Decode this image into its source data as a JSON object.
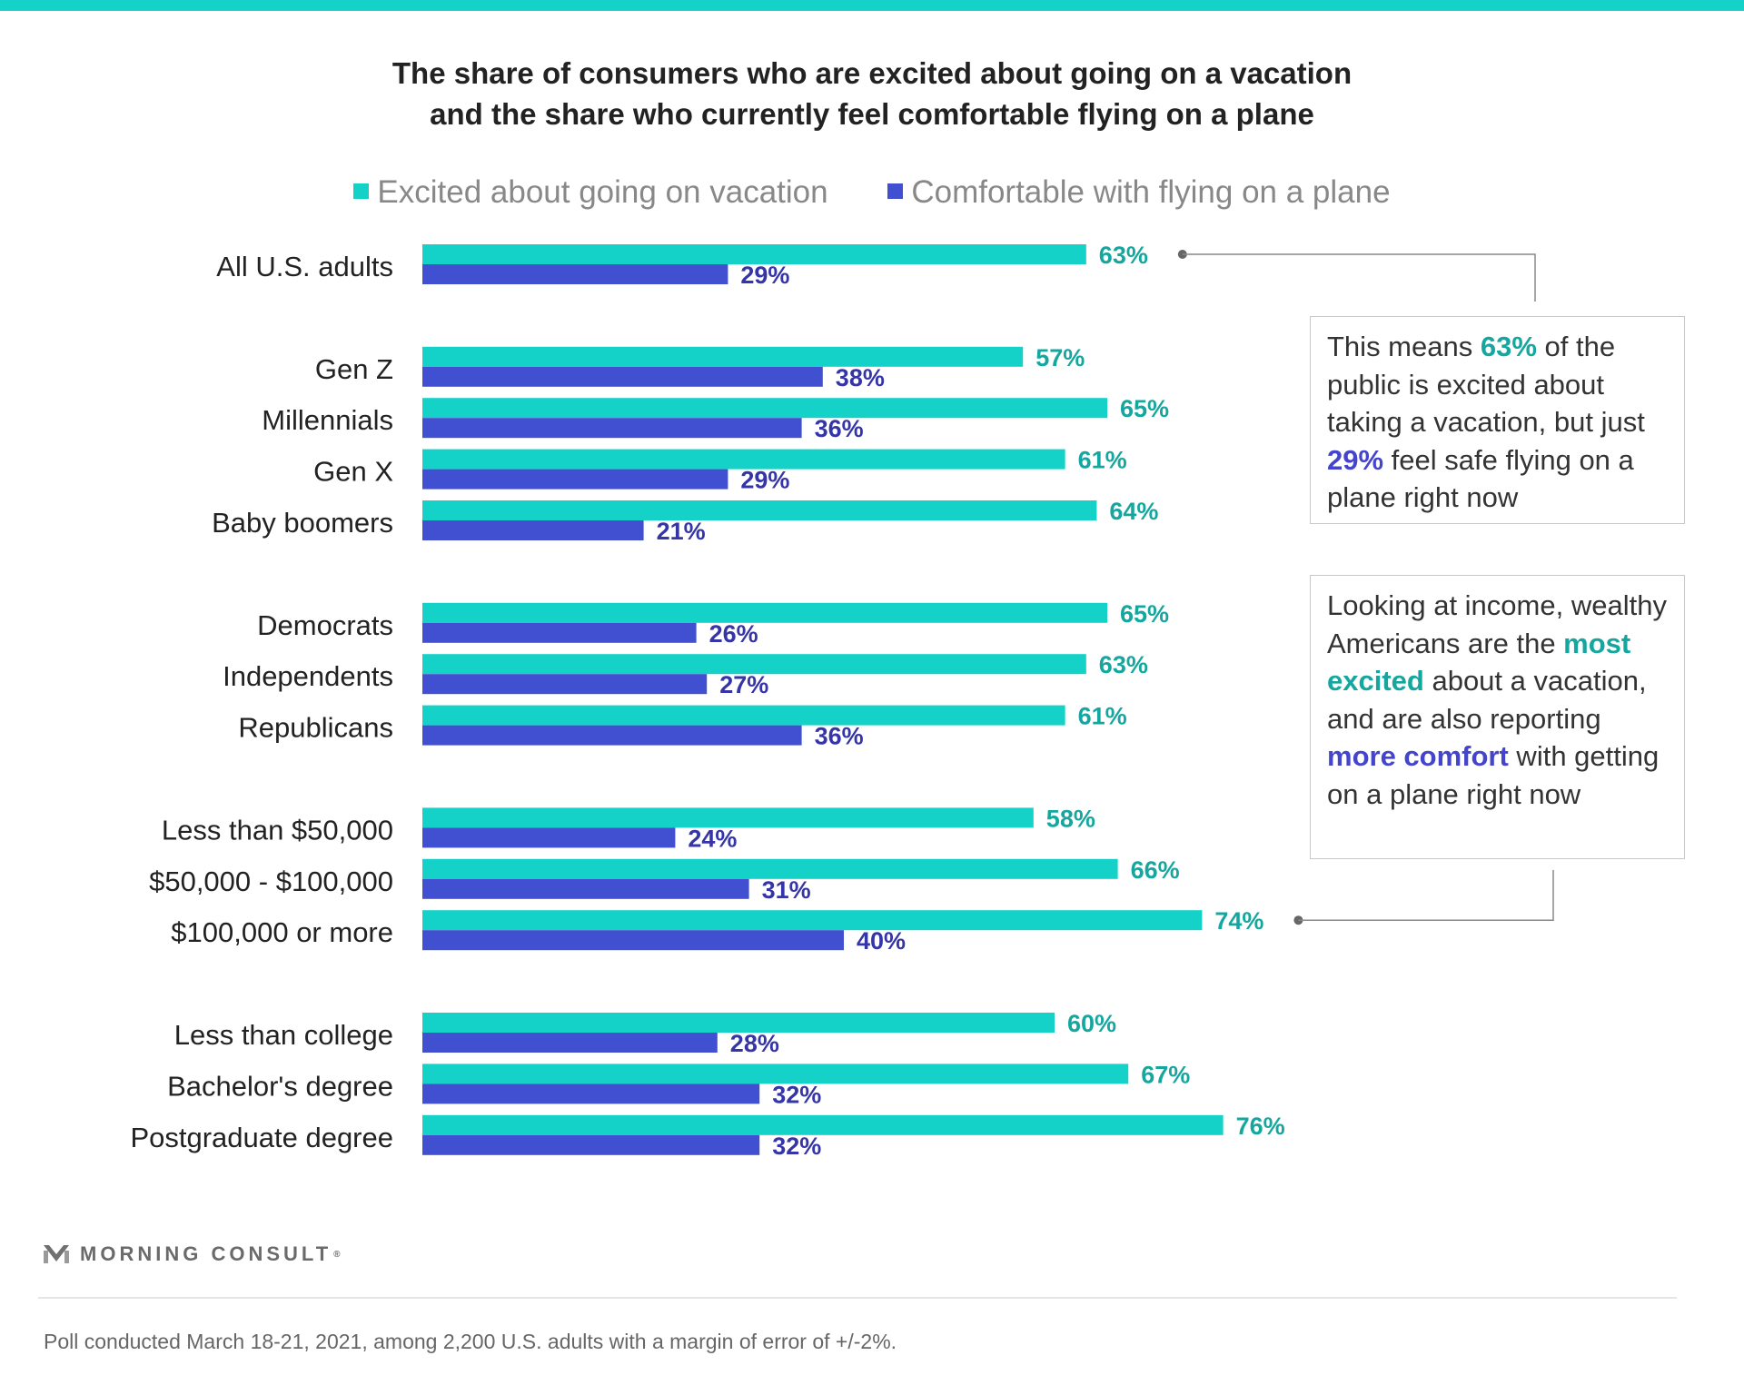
{
  "colors": {
    "excited": "#14d2c8",
    "comfortable": "#4050d0",
    "excited_label": "#15a79f",
    "comfortable_label": "#3535a8"
  },
  "chart_data": {
    "type": "bar",
    "orientation": "horizontal",
    "title": "The share of consumers who are excited about going on a vacation and the share who currently feel comfortable flying on a plane",
    "title_lines": [
      "The share of consumers who are excited about going on a vacation",
      "and the share who currently feel comfortable flying on a plane"
    ],
    "value_format": "percent",
    "xlim": [
      0,
      100
    ],
    "grid": false,
    "legend_position": "top",
    "groups": [
      [
        "All U.S. adults"
      ],
      [
        "Gen Z",
        "Millennials",
        "Gen X",
        "Baby boomers"
      ],
      [
        "Democrats",
        "Independents",
        "Republicans"
      ],
      [
        "Less than $50,000",
        "$50,000 - $100,000",
        "$100,000 or more"
      ],
      [
        "Less than college",
        "Bachelor's degree",
        "Postgraduate degree"
      ]
    ],
    "categories": [
      "All U.S. adults",
      "Gen Z",
      "Millennials",
      "Gen X",
      "Baby boomers",
      "Democrats",
      "Independents",
      "Republicans",
      "Less than $50,000",
      "$50,000 - $100,000",
      "$100,000 or more",
      "Less than college",
      "Bachelor's degree",
      "Postgraduate degree"
    ],
    "series": [
      {
        "name": "Excited about going on vacation",
        "values": [
          63,
          57,
          65,
          61,
          64,
          65,
          63,
          61,
          58,
          66,
          74,
          60,
          67,
          76
        ]
      },
      {
        "name": "Comfortable with flying on a plane",
        "values": [
          29,
          38,
          36,
          29,
          21,
          26,
          27,
          36,
          24,
          31,
          40,
          28,
          32,
          32
        ]
      }
    ]
  },
  "callouts": {
    "first": {
      "before_1": "This means ",
      "value_1": "63%",
      "after_1": " of the public is excited about taking a vacation, but just ",
      "value_2": "29%",
      "after_2": " feel safe flying on a plane right now"
    },
    "second": {
      "before_1": "Looking at income, wealthy Americans are the ",
      "highlight_1": "most excited",
      "after_1": " about a vacation, and are also reporting ",
      "highlight_2": "more comfort",
      "after_2": " with getting on a plane right now"
    }
  },
  "brand": {
    "name": "MORNING CONSULT",
    "mark": "®"
  },
  "footnote": "Poll conducted March 18-21, 2021, among 2,200 U.S. adults with a margin of error of +/-2%."
}
